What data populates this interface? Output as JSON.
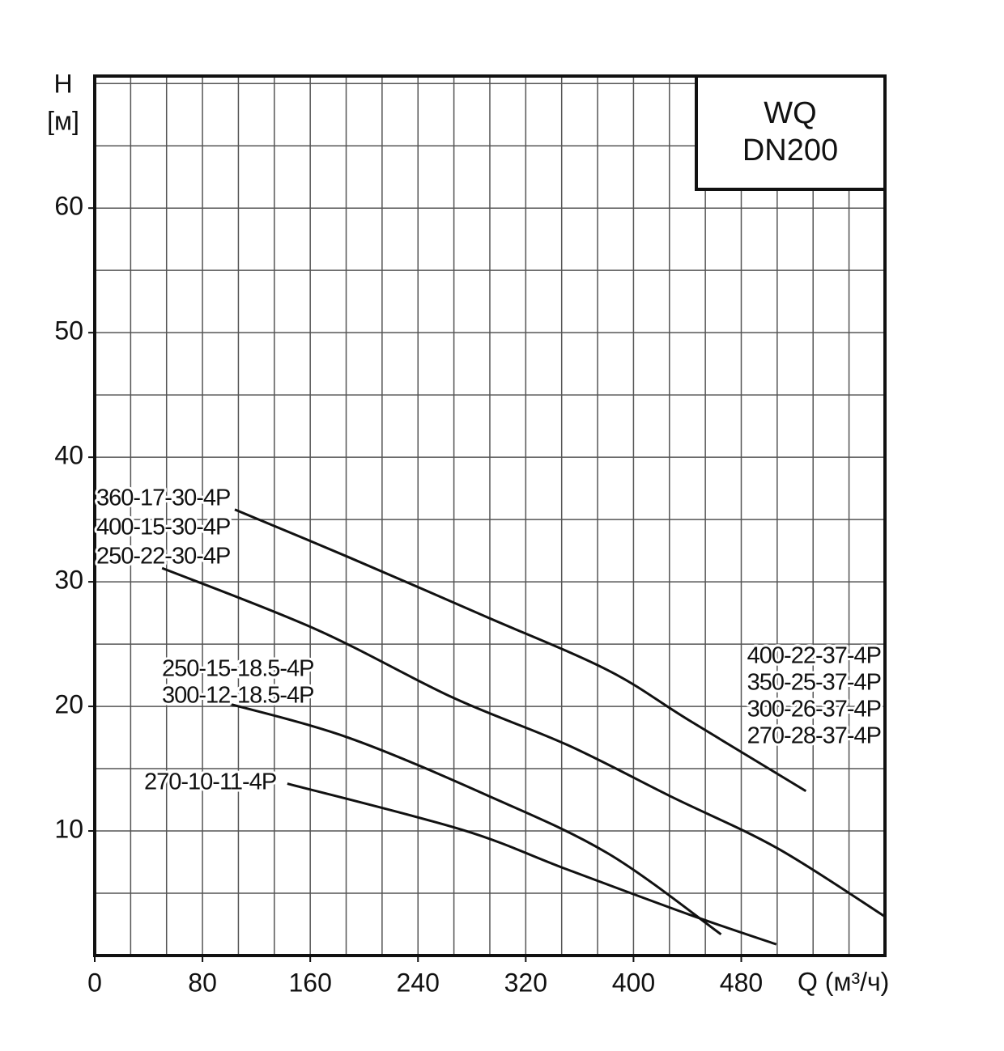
{
  "chart_data": {
    "type": "line",
    "ylabel": "H",
    "yunit": "[м]",
    "xlabel": "Q (м³/ч)",
    "box": [
      "WQ",
      "DN200"
    ],
    "xlim": [
      0,
      586.7
    ],
    "ylim": [
      0,
      70.6
    ],
    "xticks": [
      0,
      80,
      160,
      240,
      320,
      400,
      480
    ],
    "yticks": [
      10,
      20,
      30,
      40,
      50,
      60
    ],
    "grid": true,
    "color": "#111",
    "series": [
      {
        "labels": [
          "400-22-37-4P",
          "350-25-37-4P",
          "300-26-37-4P",
          "270-28-37-4P"
        ],
        "x": [
          104,
          188,
          290.5,
          381,
          441,
          528
        ],
        "values": [
          35.8,
          32.0,
          27.2,
          22.9,
          18.9,
          13.2
        ]
      },
      {
        "labels": [
          "360-17-30-4P",
          "400-15-30-4P",
          "250-22-30-4P"
        ],
        "x": [
          50,
          164,
          266,
          351,
          429,
          507,
          587
        ],
        "values": [
          31.1,
          26.2,
          20.7,
          16.9,
          12.7,
          8.6,
          3.1
        ]
      },
      {
        "labels": [
          "250-15-18.5-4P",
          "300-12-18.5-4P"
        ],
        "x": [
          100,
          188,
          290.5,
          381,
          465
        ],
        "values": [
          20.2,
          17.5,
          12.9,
          8.2,
          1.7
        ]
      },
      {
        "labels": [
          "270-10-11-4P"
        ],
        "x": [
          143,
          272.5,
          351,
          441,
          506
        ],
        "values": [
          13.8,
          10.1,
          6.9,
          3.3,
          0.9
        ]
      }
    ]
  }
}
